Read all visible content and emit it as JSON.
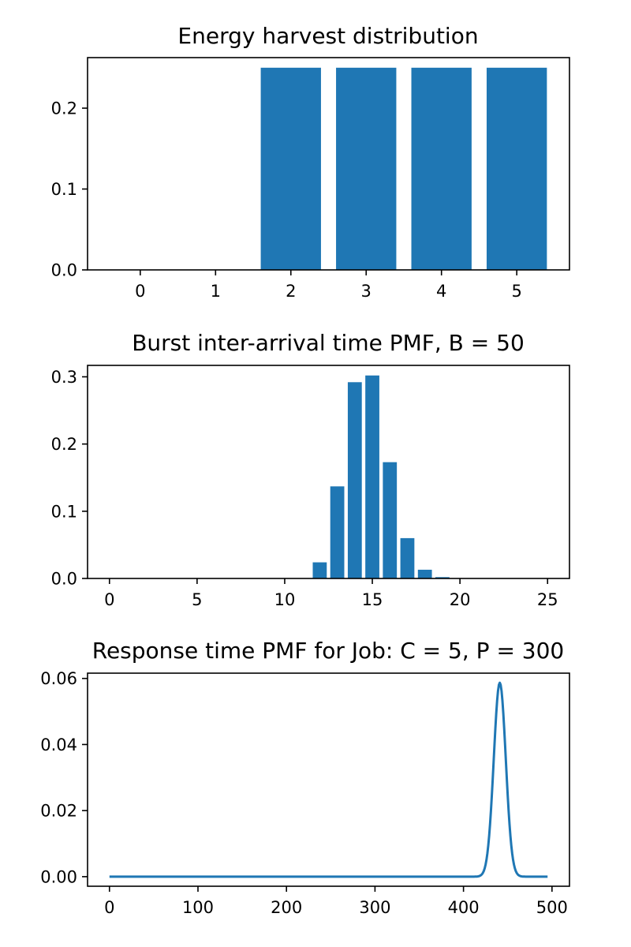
{
  "chart_data": [
    {
      "type": "bar",
      "title": "Energy harvest distribution",
      "xlabel": "",
      "ylabel": "",
      "x": [
        0,
        1,
        2,
        3,
        4,
        5
      ],
      "values": [
        0,
        0,
        0.25,
        0.25,
        0.25,
        0.25
      ],
      "xlim": [
        -0.7,
        5.7
      ],
      "ylim": [
        0,
        0.2625
      ],
      "xticks": [
        0,
        1,
        2,
        3,
        4,
        5
      ],
      "yticks": [
        0.0,
        0.1,
        0.2
      ],
      "ytick_labels": [
        "0.0",
        "0.1",
        "0.2"
      ],
      "bar_width": 0.8,
      "color": "#1f77b4",
      "grid": false,
      "legend": "none"
    },
    {
      "type": "bar",
      "title": "Burst inter-arrival time PMF, B = 50",
      "xlabel": "",
      "ylabel": "",
      "x": [
        0,
        1,
        2,
        3,
        4,
        5,
        6,
        7,
        8,
        9,
        10,
        11,
        12,
        13,
        14,
        15,
        16,
        17,
        18,
        19,
        20,
        21,
        22,
        23,
        24,
        25
      ],
      "values": [
        0,
        0,
        0,
        0,
        0,
        0,
        0,
        0,
        0,
        0,
        0,
        0,
        0.024,
        0.137,
        0.292,
        0.302,
        0.173,
        0.06,
        0.013,
        0.002,
        0.0003,
        0,
        0,
        0,
        0,
        0
      ],
      "xlim": [
        -1.25,
        26.25
      ],
      "ylim": [
        0,
        0.317
      ],
      "xticks": [
        0,
        5,
        10,
        15,
        20,
        25
      ],
      "yticks": [
        0.0,
        0.1,
        0.2,
        0.3
      ],
      "ytick_labels": [
        "0.0",
        "0.1",
        "0.2",
        "0.3"
      ],
      "bar_width": 0.8,
      "color": "#1f77b4",
      "grid": false,
      "legend": "none"
    },
    {
      "type": "line",
      "title": "Response time PMF for Job: C = 5, P = 300",
      "xlabel": "",
      "ylabel": "",
      "x_range": [
        0,
        495
      ],
      "peak": {
        "x": 441,
        "y": 0.0587
      },
      "spread": 6.8,
      "xlim": [
        -24.75,
        519.75
      ],
      "ylim": [
        -0.0029,
        0.0616
      ],
      "xticks": [
        0,
        100,
        200,
        300,
        400,
        500
      ],
      "yticks": [
        0.0,
        0.02,
        0.04,
        0.06
      ],
      "ytick_labels": [
        "0.00",
        "0.02",
        "0.04",
        "0.06"
      ],
      "color": "#1f77b4",
      "grid": false,
      "legend": "none"
    }
  ]
}
